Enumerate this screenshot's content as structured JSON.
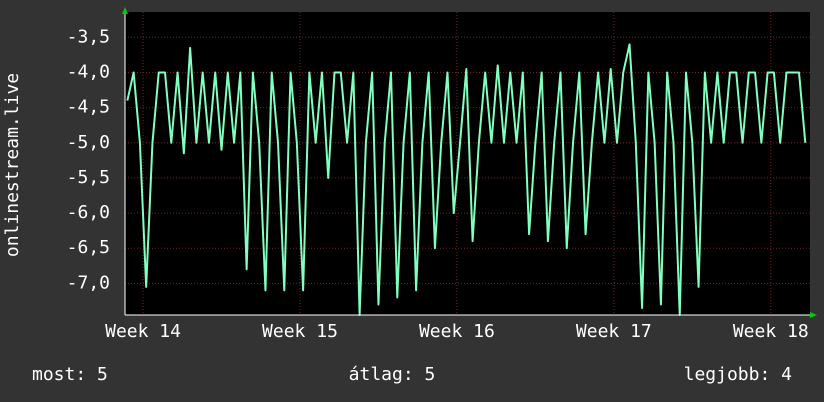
{
  "chart_data": {
    "type": "line",
    "y_label": "onlinestream.live",
    "x": [
      13.9,
      13.94,
      13.98,
      14.02,
      14.06,
      14.1,
      14.14,
      14.18,
      14.22,
      14.26,
      14.3,
      14.34,
      14.38,
      14.42,
      14.46,
      14.5,
      14.54,
      14.58,
      14.62,
      14.66,
      14.7,
      14.74,
      14.78,
      14.82,
      14.86,
      14.9,
      14.94,
      14.98,
      15.02,
      15.06,
      15.1,
      15.14,
      15.18,
      15.22,
      15.26,
      15.3,
      15.34,
      15.38,
      15.42,
      15.46,
      15.5,
      15.54,
      15.58,
      15.62,
      15.66,
      15.7,
      15.74,
      15.78,
      15.82,
      15.86,
      15.9,
      15.94,
      15.98,
      16.02,
      16.06,
      16.1,
      16.14,
      16.18,
      16.22,
      16.26,
      16.3,
      16.34,
      16.38,
      16.42,
      16.46,
      16.5,
      16.54,
      16.58,
      16.62,
      16.66,
      16.7,
      16.74,
      16.78,
      16.82,
      16.86,
      16.9,
      16.94,
      16.98,
      17.02,
      17.06,
      17.1,
      17.14,
      17.18,
      17.22,
      17.26,
      17.3,
      17.34,
      17.38,
      17.42,
      17.46,
      17.5,
      17.54,
      17.58,
      17.62,
      17.66,
      17.7,
      17.74,
      17.78,
      17.82,
      17.86,
      17.9,
      17.94,
      17.98,
      18.02,
      18.06,
      18.1,
      18.14,
      18.18,
      18.22
    ],
    "series": [
      {
        "color": "#80ffc0",
        "values": [
          -4.4,
          -4.0,
          -5.0,
          -7.05,
          -5.0,
          -4.0,
          -4.0,
          -5.0,
          -4.0,
          -5.15,
          -3.65,
          -5.0,
          -4.0,
          -5.0,
          -4.0,
          -5.1,
          -4.0,
          -5.0,
          -4.0,
          -6.8,
          -4.0,
          -5.0,
          -7.1,
          -4.0,
          -5.0,
          -7.1,
          -4.0,
          -5.0,
          -7.1,
          -4.0,
          -5.0,
          -4.0,
          -5.5,
          -4.0,
          -4.0,
          -5.0,
          -4.0,
          -7.45,
          -5.0,
          -4.0,
          -7.3,
          -5.0,
          -4.0,
          -7.2,
          -5.0,
          -4.0,
          -7.1,
          -5.0,
          -4.0,
          -6.5,
          -5.0,
          -4.0,
          -6.0,
          -5.0,
          -3.95,
          -6.4,
          -5.0,
          -4.0,
          -5.0,
          -3.9,
          -5.0,
          -4.0,
          -5.0,
          -4.0,
          -6.3,
          -5.0,
          -4.0,
          -6.4,
          -5.0,
          -4.0,
          -6.5,
          -5.0,
          -4.0,
          -6.3,
          -5.0,
          -4.0,
          -5.0,
          -3.95,
          -5.0,
          -4.0,
          -3.6,
          -5.0,
          -7.35,
          -4.0,
          -5.0,
          -7.3,
          -4.0,
          -5.0,
          -7.45,
          -4.0,
          -5.0,
          -7.05,
          -4.0,
          -5.0,
          -4.0,
          -5.0,
          -4.0,
          -4.0,
          -5.0,
          -4.0,
          -4.0,
          -5.0,
          -4.0,
          -4.0,
          -5.0,
          -4.0,
          -4.0,
          -4.0,
          -5.0
        ]
      }
    ],
    "xlim": [
      13.885,
      18.25
    ],
    "ylim": [
      -7.45,
      -3.14
    ],
    "xticks": [
      {
        "value": 14,
        "label": "Week 14"
      },
      {
        "value": 15,
        "label": "Week 15"
      },
      {
        "value": 16,
        "label": "Week 16"
      },
      {
        "value": 17,
        "label": "Week 17"
      },
      {
        "value": 18,
        "label": "Week 18"
      }
    ],
    "yticks": [
      {
        "value": -3.5,
        "label": "-3,5"
      },
      {
        "value": -4.0,
        "label": "-4,0"
      },
      {
        "value": -4.5,
        "label": "-4,5"
      },
      {
        "value": -5.0,
        "label": "-5,0"
      },
      {
        "value": -5.5,
        "label": "-5,5"
      },
      {
        "value": -6.0,
        "label": "-6,0"
      },
      {
        "value": -6.5,
        "label": "-6,5"
      },
      {
        "value": -7.0,
        "label": "-7,0"
      }
    ],
    "grid": true,
    "grid_color": "#7a2020",
    "footer": [
      "most: 5",
      "átlag: 5",
      "legjobb: 4"
    ]
  }
}
